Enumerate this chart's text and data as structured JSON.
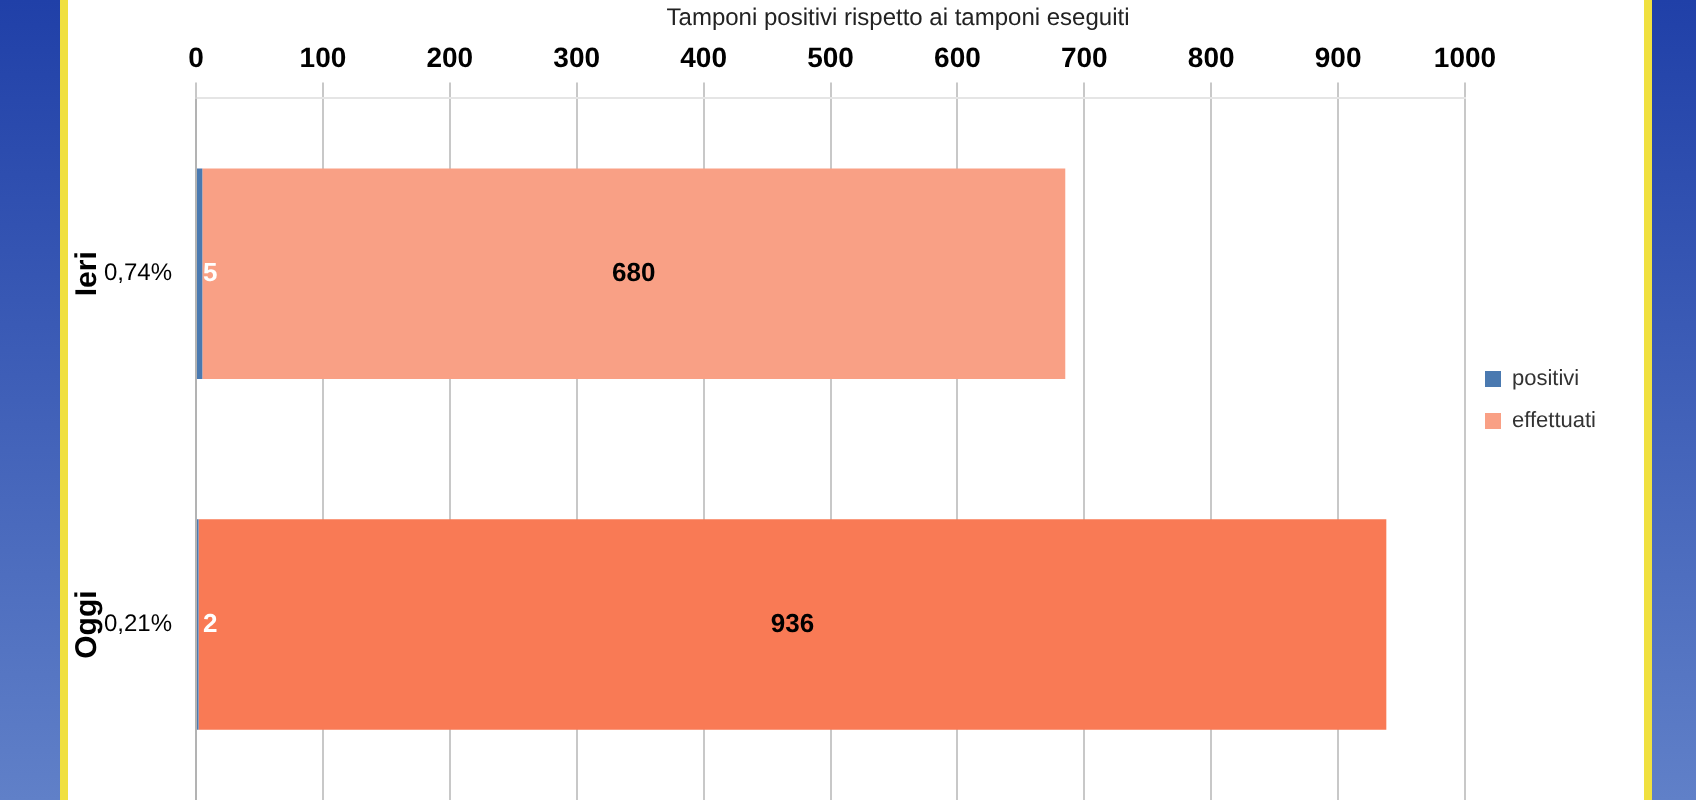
{
  "chart_data": {
    "type": "bar",
    "orientation": "horizontal",
    "stacked": true,
    "title": "Tamponi positivi rispetto ai tamponi eseguiti",
    "categories": [
      "Ieri",
      "Oggi"
    ],
    "series": [
      {
        "name": "positivi",
        "color": "#4a79b0",
        "values": [
          5,
          2
        ]
      },
      {
        "name": "effettuati",
        "colors": [
          "#f9a085",
          "#f97a55"
        ],
        "values": [
          680,
          936
        ]
      }
    ],
    "xlim": [
      0,
      1000
    ],
    "xticks": [
      0,
      100,
      200,
      300,
      400,
      500,
      600,
      700,
      800,
      900,
      1000
    ],
    "grid": "x",
    "legend": "right",
    "data_labels": true,
    "annotations": [
      "0,74%",
      "0,21%"
    ]
  }
}
